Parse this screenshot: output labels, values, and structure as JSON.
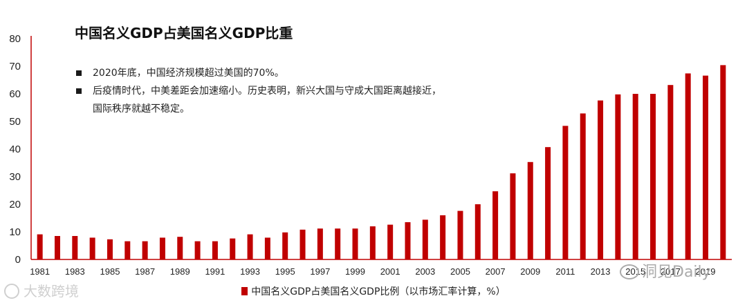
{
  "notes": [
    "2020年底，中国经济规模超过美国的70%。",
    "后疫情时代，中美差距会加速缩小。历史表明，新兴大国与守成大国距离越接近，",
    "国际秩序就越不稳定。"
  ],
  "watermarks": {
    "left": "大数跨境",
    "right": "洞见Daily"
  },
  "colors": {
    "bar": "#c00000",
    "axis": "#c00000"
  },
  "chart_data": {
    "type": "bar",
    "title": "中国名义GDP占美国名义GDP比重",
    "xlabel": "",
    "ylabel": "",
    "ylim": [
      0,
      80
    ],
    "yticks": [
      0,
      10,
      20,
      30,
      40,
      50,
      60,
      70,
      80
    ],
    "grid": false,
    "legend": "bottom-center",
    "categories": [
      1981,
      1982,
      1983,
      1984,
      1985,
      1986,
      1987,
      1988,
      1989,
      1990,
      1991,
      1992,
      1993,
      1994,
      1995,
      1996,
      1997,
      1998,
      1999,
      2000,
      2001,
      2002,
      2003,
      2004,
      2005,
      2006,
      2007,
      2008,
      2009,
      2010,
      2011,
      2012,
      2013,
      2014,
      2015,
      2016,
      2017,
      2018,
      2019,
      2020
    ],
    "xtick_labels": [
      "1981",
      "1983",
      "1985",
      "1987",
      "1989",
      "1991",
      "1993",
      "1995",
      "1997",
      "1999",
      "2001",
      "2003",
      "2005",
      "2007",
      "2009",
      "2011",
      "2013",
      "2015",
      "2017",
      "2019"
    ],
    "series": [
      {
        "name": "中国名义GDP占美国名义GDP比例（以市场汇率计算，%）",
        "values": [
          9.1,
          8.5,
          8.5,
          7.9,
          7.3,
          6.6,
          6.6,
          7.9,
          8.2,
          6.6,
          6.6,
          7.6,
          9.1,
          7.9,
          9.8,
          10.8,
          11.2,
          11.2,
          11.2,
          12.0,
          12.6,
          13.5,
          14.4,
          16.0,
          17.6,
          20.0,
          24.7,
          31.2,
          35.3,
          40.7,
          48.4,
          52.9,
          57.6,
          59.8,
          60.0,
          60.0,
          63.2,
          67.4,
          66.6,
          70.4
        ]
      }
    ]
  }
}
